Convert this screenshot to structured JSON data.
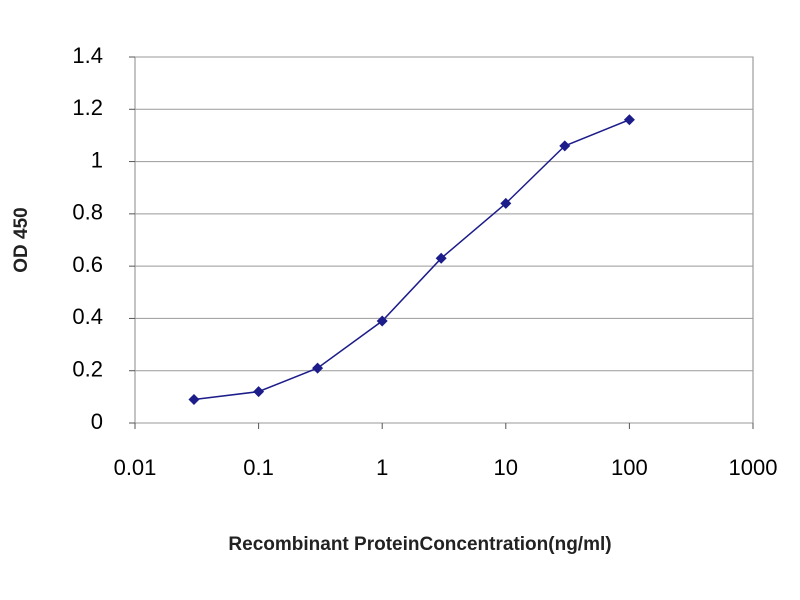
{
  "chart_data": {
    "type": "line",
    "x_label": "Recombinant ProteinConcentration(ng/ml)",
    "y_label": "OD 450",
    "x": [
      0.03,
      0.1,
      0.3,
      1,
      3,
      10,
      30,
      100
    ],
    "values": [
      0.09,
      0.12,
      0.21,
      0.39,
      0.63,
      0.84,
      1.06,
      1.16
    ],
    "color": "#1c1c8a",
    "xscale": "log",
    "xlim": [
      0.01,
      1000
    ],
    "xticks": [
      0.01,
      0.1,
      1,
      10,
      100,
      1000
    ],
    "ylim": [
      0,
      1.4
    ],
    "yticks": [
      0,
      0.2,
      0.4,
      0.6,
      0.8,
      1,
      1.2,
      1.4
    ],
    "grid": true
  }
}
